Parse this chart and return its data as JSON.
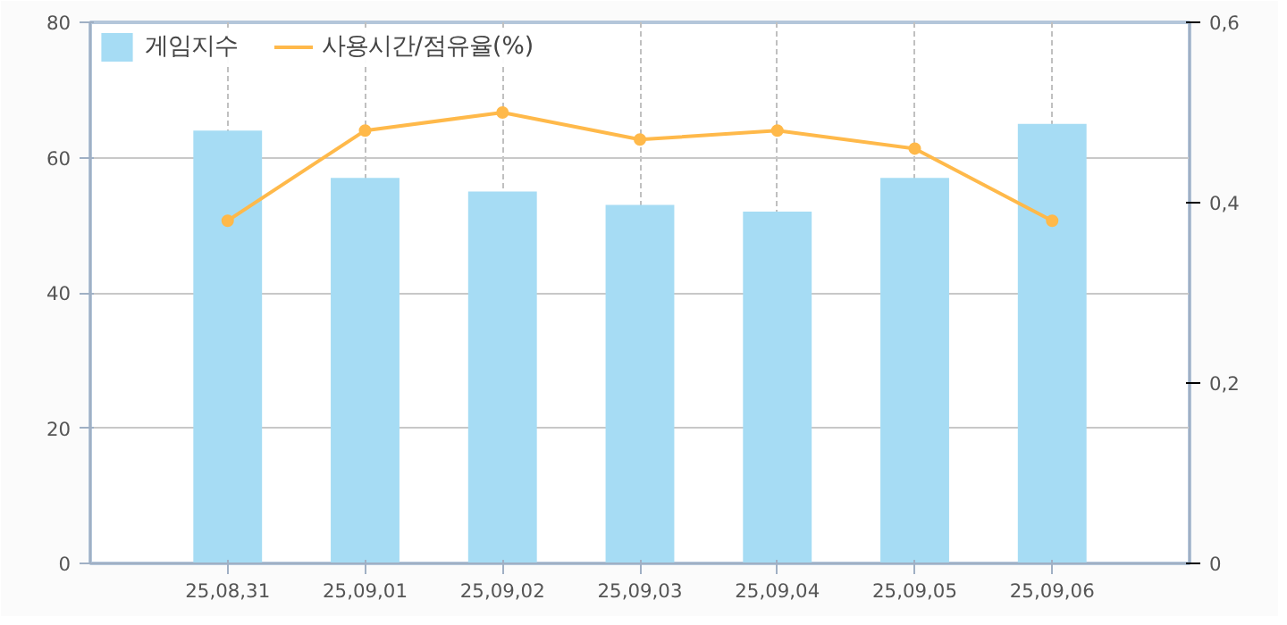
{
  "chart_data": {
    "type": "bar",
    "categories": [
      "25,08,31",
      "25,09,01",
      "25,09,02",
      "25,09,03",
      "25,09,04",
      "25,09,05",
      "25,09,06"
    ],
    "series": [
      {
        "name": "게임지수",
        "color": "#a6dcf4",
        "values": [
          64,
          57,
          55,
          53,
          52,
          57,
          65
        ]
      },
      {
        "name": "사용시간/점유율(%)",
        "type": "line",
        "axis": "y2",
        "color": "#ffb94a",
        "values": [
          0.38,
          0.48,
          0.5,
          0.47,
          0.48,
          0.46,
          0.38
        ]
      }
    ],
    "ylim": [
      0,
      80
    ],
    "yticks": [
      0,
      20,
      40,
      60,
      80
    ],
    "y2lim": [
      0,
      0.6
    ],
    "y2ticks": [
      0,
      {
        "value": 0.2,
        "label": "0,2"
      },
      {
        "value": 0.4,
        "label": "0,4"
      },
      {
        "value": 0.6,
        "label": "0,6"
      }
    ],
    "grid": true,
    "legend": "top left",
    "marker": "circle",
    "line_style": "solid"
  }
}
